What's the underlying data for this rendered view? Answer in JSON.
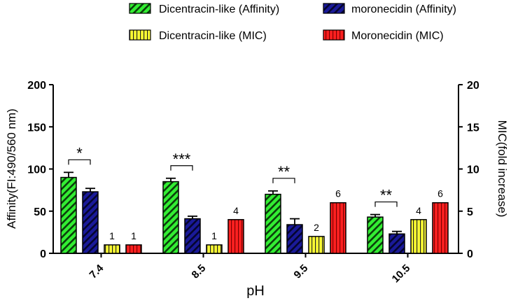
{
  "chart_data": {
    "type": "bar",
    "title": "",
    "xlabel": "pH",
    "ylabel_left": "Affinity(FI:490/560 nm)",
    "ylabel_right": "MIC(fold increase)",
    "categories": [
      "7.4",
      "8.5",
      "9.5",
      "10.5"
    ],
    "ylim_left": [
      0,
      200
    ],
    "yticks_left": [
      "0",
      "50",
      "100",
      "150",
      "200"
    ],
    "ylim_right": [
      0,
      20
    ],
    "yticks_right": [
      "0",
      "5",
      "10",
      "15",
      "20"
    ],
    "series": [
      {
        "name": "Dicentracin-like (Affinity)",
        "axis": "left",
        "values": [
          90,
          85,
          70,
          43
        ],
        "errors": [
          6,
          4,
          4,
          3
        ],
        "fill": "#33ee33",
        "pattern": "hatch-green",
        "labels": [
          "",
          "",
          "",
          ""
        ]
      },
      {
        "name": "moronecidin (Affinity)",
        "axis": "left",
        "values": [
          73,
          41,
          34,
          23
        ],
        "errors": [
          4,
          3,
          7,
          3
        ],
        "fill": "#1a1a99",
        "pattern": "hatch-blue",
        "labels": [
          "",
          "",
          "",
          ""
        ]
      },
      {
        "name": "Dicentracin-like (MIC)",
        "axis": "right",
        "values": [
          1,
          1,
          2,
          4
        ],
        "errors": [
          0,
          0,
          0,
          0
        ],
        "fill": "#ffff33",
        "pattern": "vert-yellow",
        "labels": [
          "1",
          "1",
          "2",
          "4"
        ]
      },
      {
        "name": "Moronecidin (MIC)",
        "axis": "right",
        "values": [
          1,
          4,
          6,
          6
        ],
        "errors": [
          0,
          0,
          0,
          0
        ],
        "fill": "#ff2020",
        "pattern": "vert-red",
        "labels": [
          "1",
          "4",
          "6",
          "6"
        ]
      }
    ],
    "significance": [
      {
        "category": "7.4",
        "stars": "*"
      },
      {
        "category": "8.5",
        "stars": "***"
      },
      {
        "category": "9.5",
        "stars": "**"
      },
      {
        "category": "10.5",
        "stars": "**"
      }
    ],
    "legend": [
      "Dicentracin-like (Affinity)",
      "moronecidin (Affinity)",
      "Dicentracin-like (MIC)",
      "Moronecidin (MIC)"
    ]
  }
}
